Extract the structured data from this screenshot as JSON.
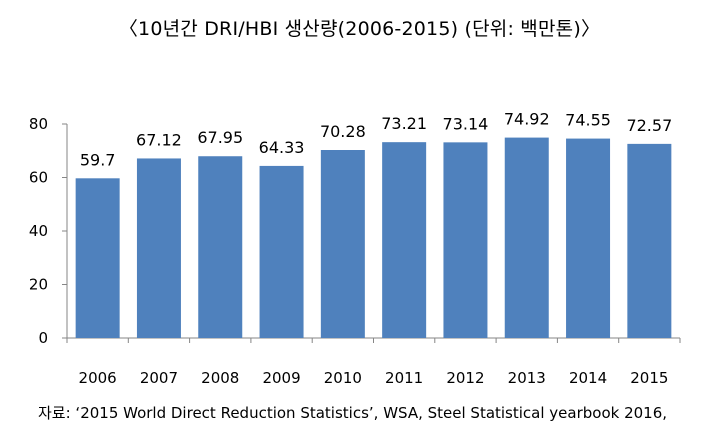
{
  "chart_data": {
    "type": "bar",
    "title": "〈10년간 DRI/HBI 생산량(2006-2015) (단위: 백만톤)〉",
    "categories": [
      "2006",
      "2007",
      "2008",
      "2009",
      "2010",
      "2011",
      "2012",
      "2013",
      "2014",
      "2015"
    ],
    "values": [
      59.7,
      67.12,
      67.95,
      64.33,
      70.28,
      73.21,
      73.14,
      74.92,
      74.55,
      72.57
    ],
    "value_labels": [
      "59.7",
      "67.12",
      "67.95",
      "64.33",
      "70.28",
      "73.21",
      "73.14",
      "74.92",
      "74.55",
      "72.57"
    ],
    "ylim": [
      0,
      80
    ],
    "yticks": [
      0,
      20,
      40,
      60,
      80
    ],
    "xlabel": "",
    "ylabel": "",
    "grid": false,
    "legend": "none",
    "bar_color": "#4F81BD",
    "source": "자료: ‘2015 World Direct Reduction Statistics’, WSA, Steel Statistical yearbook 2016,"
  }
}
